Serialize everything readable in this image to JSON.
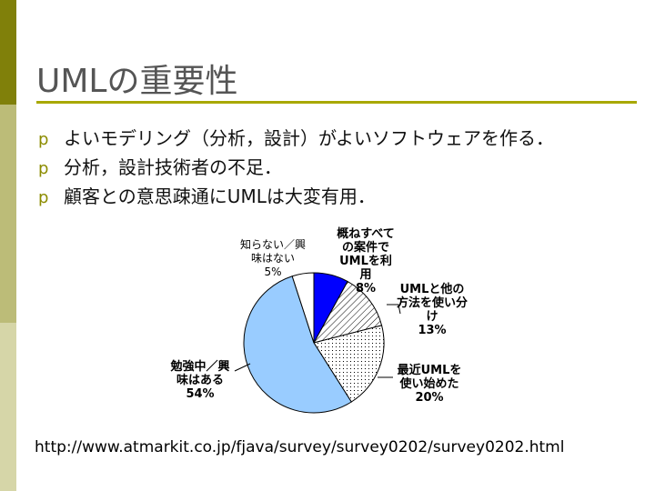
{
  "title": "UMLの重要性",
  "bullet_symbol": "p",
  "bullets": [
    "よいモデリング（分析，設計）がよいソフトウェアを作る．",
    "分析，設計技術者の不足．",
    "顧客との意思疎通にUMLは大変有用．"
  ],
  "chart_data": {
    "type": "pie",
    "categories": [
      "概ねすべての案件でUMLを利用",
      "UMLと他の方法を使い分け",
      "最近UMLを使い始めた",
      "勉強中／興味はある",
      "知らない／興味はない"
    ],
    "values": [
      8,
      13,
      20,
      54,
      5
    ],
    "value_labels": [
      "8%",
      "13%",
      "20%",
      "54%",
      "5%"
    ],
    "colors": [
      "#0000ff",
      "hatch",
      "dots",
      "#99ccff",
      "#ffffff"
    ]
  },
  "source": "http://www.atmarkit.co.jp/fjava/survey/survey0202/survey0202.html"
}
